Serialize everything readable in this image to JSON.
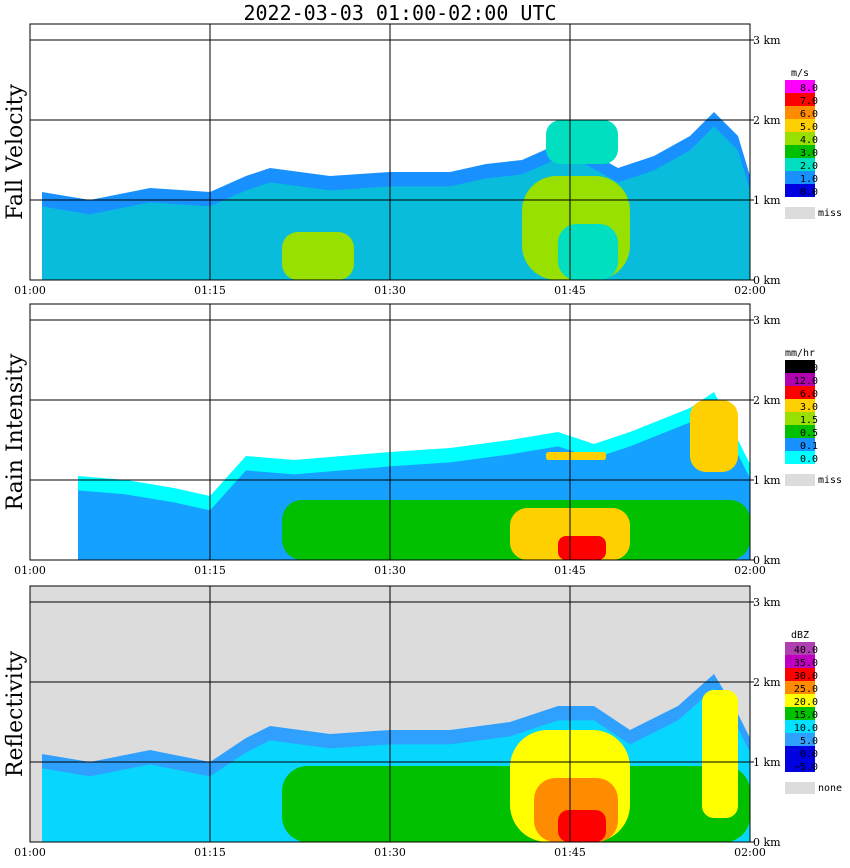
{
  "title": "2022-03-03   01:00-02:00 UTC",
  "chart_data": [
    {
      "type": "heatmap",
      "ylabel": "Fall Velocity",
      "x_ticks": [
        "01:00",
        "01:15",
        "01:30",
        "01:45",
        "02:00"
      ],
      "y_ticks": [
        "0 km",
        "1 km",
        "2 km",
        "3 km"
      ],
      "ylim": [
        0,
        3.2
      ],
      "unit": "m/s",
      "legend_levels": [
        "8.0",
        "7.0",
        "6.0",
        "5.0",
        "4.0",
        "3.0",
        "2.0",
        "1.0",
        "0.0"
      ],
      "legend_colors": [
        "#ff00ff",
        "#ff0000",
        "#ff8c00",
        "#ffd000",
        "#98e000",
        "#00c000",
        "#00e0c0",
        "#1890ff",
        "#0000e0"
      ],
      "missing_label": "miss",
      "missing_color": "#dcdcdc",
      "cloud_top_km": [
        [
          1,
          1.1
        ],
        [
          5,
          1.0
        ],
        [
          10,
          1.15
        ],
        [
          15,
          1.1
        ],
        [
          18,
          1.3
        ],
        [
          20,
          1.4
        ],
        [
          25,
          1.3
        ],
        [
          30,
          1.35
        ],
        [
          35,
          1.35
        ],
        [
          38,
          1.45
        ],
        [
          41,
          1.5
        ],
        [
          44,
          1.7
        ],
        [
          46,
          1.65
        ],
        [
          49,
          1.4
        ],
        [
          52,
          1.55
        ],
        [
          55,
          1.8
        ],
        [
          57,
          2.1
        ],
        [
          59,
          1.8
        ],
        [
          60,
          1.3
        ]
      ],
      "features": [
        {
          "t0": 21,
          "t1": 27,
          "h0": 0.0,
          "h1": 0.6,
          "level": 4
        },
        {
          "t0": 41,
          "t1": 50,
          "h0": 0.0,
          "h1": 1.3,
          "level": 4
        },
        {
          "t0": 44,
          "t1": 49,
          "h0": 0.0,
          "h1": 0.7,
          "level": 6
        },
        {
          "t0": 43,
          "t1": 49,
          "h0": 1.45,
          "h1": 2.0,
          "level": 6
        }
      ]
    },
    {
      "type": "heatmap",
      "ylabel": "Rain Intensity",
      "x_ticks": [
        "01:00",
        "01:15",
        "01:30",
        "01:45",
        "02:00"
      ],
      "y_ticks": [
        "0 km",
        "1 km",
        "2 km",
        "3 km"
      ],
      "ylim": [
        0,
        3.2
      ],
      "unit": "mm/hr",
      "legend_levels": [
        "48.0",
        "12.0",
        "6.0",
        "3.0",
        "1.5",
        "0.5",
        "0.1",
        "0.0"
      ],
      "legend_colors": [
        "#000000",
        "#b000b0",
        "#ff0000",
        "#ffd000",
        "#98e000",
        "#00c000",
        "#1890ff",
        "#00ffff"
      ],
      "missing_label": "miss",
      "missing_color": "#dcdcdc",
      "cloud_top_km": [
        [
          4,
          1.05
        ],
        [
          8,
          1.0
        ],
        [
          12,
          0.9
        ],
        [
          15,
          0.8
        ],
        [
          18,
          1.3
        ],
        [
          22,
          1.25
        ],
        [
          26,
          1.3
        ],
        [
          30,
          1.35
        ],
        [
          35,
          1.4
        ],
        [
          40,
          1.5
        ],
        [
          44,
          1.6
        ],
        [
          47,
          1.45
        ],
        [
          50,
          1.6
        ],
        [
          55,
          1.9
        ],
        [
          57,
          2.1
        ],
        [
          59,
          1.5
        ],
        [
          60,
          1.2
        ]
      ],
      "features": [
        {
          "t0": 21,
          "t1": 60,
          "h0": 0.0,
          "h1": 0.75,
          "level": 5
        },
        {
          "t0": 40,
          "t1": 50,
          "h0": 0.0,
          "h1": 0.65,
          "level": 3
        },
        {
          "t0": 44,
          "t1": 48,
          "h0": 0.0,
          "h1": 0.3,
          "level": 2
        },
        {
          "t0": 55,
          "t1": 59,
          "h0": 1.1,
          "h1": 2.0,
          "level": 3
        },
        {
          "t0": 43,
          "t1": 48,
          "h0": 1.25,
          "h1": 1.35,
          "level": 3
        }
      ]
    },
    {
      "type": "heatmap",
      "ylabel": "Reflectivity",
      "x_ticks": [
        "01:00",
        "01:15",
        "01:30",
        "01:45",
        "02:00"
      ],
      "y_ticks": [
        "0 km",
        "1 km",
        "2 km",
        "3 km"
      ],
      "ylim": [
        0,
        3.2
      ],
      "unit": "dBZ",
      "legend_levels": [
        "40.0",
        "35.0",
        "30.0",
        "25.0",
        "20.0",
        "15.0",
        "10.0",
        "5.0",
        "0.0",
        "−5.0"
      ],
      "legend_colors": [
        "#b040b0",
        "#c000c0",
        "#ff0000",
        "#ff8c00",
        "#ffff00",
        "#00c000",
        "#00e0ff",
        "#30a0ff",
        "#0000e0",
        "#0000e0"
      ],
      "missing_label": "none",
      "missing_color": "#dcdcdc",
      "cloud_top_km": [
        [
          1,
          1.1
        ],
        [
          5,
          1.0
        ],
        [
          10,
          1.15
        ],
        [
          15,
          1.0
        ],
        [
          18,
          1.3
        ],
        [
          20,
          1.45
        ],
        [
          25,
          1.35
        ],
        [
          30,
          1.4
        ],
        [
          35,
          1.4
        ],
        [
          40,
          1.5
        ],
        [
          44,
          1.7
        ],
        [
          47,
          1.7
        ],
        [
          50,
          1.4
        ],
        [
          54,
          1.7
        ],
        [
          57,
          2.1
        ],
        [
          59,
          1.6
        ],
        [
          60,
          1.3
        ]
      ],
      "features": [
        {
          "t0": 21,
          "t1": 60,
          "h0": 0.0,
          "h1": 0.95,
          "level": 5
        },
        {
          "t0": 40,
          "t1": 50,
          "h0": 0.0,
          "h1": 1.4,
          "level": 4
        },
        {
          "t0": 42,
          "t1": 49,
          "h0": 0.0,
          "h1": 0.8,
          "level": 3
        },
        {
          "t0": 44,
          "t1": 48,
          "h0": 0.0,
          "h1": 0.4,
          "level": 2
        },
        {
          "t0": 56,
          "t1": 59,
          "h0": 0.3,
          "h1": 1.9,
          "level": 4
        }
      ]
    }
  ]
}
